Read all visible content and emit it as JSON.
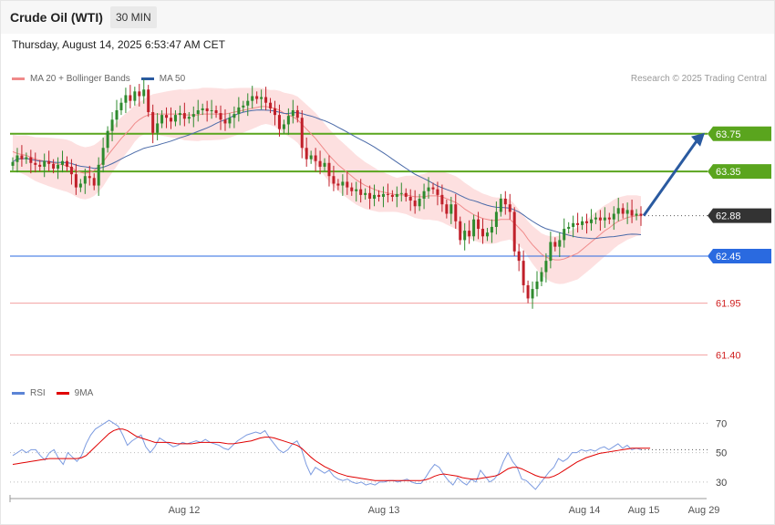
{
  "header": {
    "title": "Crude Oil (WTI)",
    "interval": "30 MIN",
    "datetime": "Thursday, August 14, 2025 6:53:47 AM CET"
  },
  "credit": "Research © 2025 Trading Central",
  "legend_main": [
    {
      "label": "MA 20 + Bollinger Bands",
      "color": "#f08a8a"
    },
    {
      "label": "MA 50",
      "color": "#2a5aa0"
    }
  ],
  "legend_rsi": [
    {
      "label": "RSI",
      "color": "#5b84d6"
    },
    {
      "label": "9MA",
      "color": "#e00000"
    }
  ],
  "colors": {
    "up": "#2e8b2e",
    "down": "#c0202a",
    "band_fill": "#fde0e0",
    "ma20": "#f08a8a",
    "ma50": "#4a6aa8",
    "resistance": "#5aa51e",
    "support_blue": "#2a6ae0",
    "support_red": "#f2a0a0",
    "current": "#333333",
    "arrow": "#2a5aa0"
  },
  "chart_data": {
    "type": "candlestick",
    "x_ticks": [
      "Aug 12",
      "Aug 13",
      "Aug 14",
      "Aug 15",
      "Aug 29"
    ],
    "price_ylim": [
      61.2,
      64.3
    ],
    "levels": [
      {
        "value": 63.75,
        "label": "63.75",
        "kind": "resistance"
      },
      {
        "value": 63.35,
        "label": "63.35",
        "kind": "resistance"
      },
      {
        "value": 62.88,
        "label": "62.88",
        "kind": "current"
      },
      {
        "value": 62.45,
        "label": "62.45",
        "kind": "support_blue"
      },
      {
        "value": 61.95,
        "label": "61.95",
        "kind": "support_red"
      },
      {
        "value": 61.4,
        "label": "61.40",
        "kind": "support_red"
      }
    ],
    "forecast_arrow": {
      "from": 62.88,
      "to": 63.75
    },
    "candles_close": [
      63.45,
      63.52,
      63.48,
      63.5,
      63.44,
      63.42,
      63.4,
      63.46,
      63.43,
      63.38,
      63.42,
      63.46,
      63.4,
      63.32,
      63.18,
      63.22,
      63.3,
      63.28,
      63.2,
      63.42,
      63.6,
      63.78,
      63.9,
      64.0,
      64.08,
      64.16,
      64.1,
      64.2,
      64.15,
      64.22,
      63.98,
      63.76,
      63.86,
      63.95,
      63.92,
      63.88,
      63.95,
      63.97,
      63.91,
      63.93,
      63.96,
      64.0,
      64.02,
      63.99,
      64.0,
      63.97,
      63.9,
      63.86,
      63.92,
      63.96,
      64.03,
      64.05,
      64.1,
      64.15,
      64.12,
      64.14,
      64.08,
      64.02,
      63.95,
      63.8,
      63.85,
      63.94,
      64.0,
      63.92,
      63.6,
      63.48,
      63.52,
      63.46,
      63.4,
      63.44,
      63.3,
      63.22,
      63.2,
      63.24,
      63.18,
      63.14,
      63.16,
      63.1,
      63.12,
      63.06,
      63.1,
      63.08,
      63.11,
      63.1,
      63.08,
      63.11,
      63.12,
      63.08,
      63.04,
      62.98,
      63.06,
      63.14,
      63.18,
      63.16,
      63.1,
      63.0,
      62.9,
      63.0,
      62.82,
      62.62,
      62.72,
      62.66,
      62.84,
      62.74,
      62.66,
      62.7,
      62.76,
      62.92,
      63.06,
      63.0,
      62.92,
      62.5,
      62.4,
      62.14,
      62.0,
      62.1,
      62.18,
      62.28,
      62.4,
      62.6,
      62.55,
      62.62,
      62.74,
      62.76,
      62.8,
      62.78,
      62.82,
      62.8,
      62.84,
      62.86,
      62.83,
      62.86,
      62.84,
      62.9,
      62.96,
      62.9,
      62.94,
      62.88,
      62.9,
      62.88
    ],
    "ma20": [
      63.56,
      63.54,
      63.53,
      63.52,
      63.5,
      63.48,
      63.47,
      63.46,
      63.45,
      63.44,
      63.43,
      63.42,
      63.41,
      63.39,
      63.36,
      63.34,
      63.33,
      63.34,
      63.36,
      63.4,
      63.45,
      63.52,
      63.58,
      63.64,
      63.7,
      63.75,
      63.8,
      63.86,
      63.9,
      63.93,
      63.95,
      63.96,
      63.96,
      63.96,
      63.96,
      63.96,
      63.96,
      63.96,
      63.95,
      63.95,
      63.95,
      63.95,
      63.96,
      63.96,
      63.96,
      63.96,
      63.96,
      63.96,
      63.97,
      63.98,
      63.99,
      64.0,
      64.01,
      64.02,
      64.03,
      64.04,
      64.04,
      64.03,
      64.02,
      64.0,
      63.97,
      63.95,
      63.93,
      63.9,
      63.85,
      63.8,
      63.75,
      63.7,
      63.64,
      63.58,
      63.52,
      63.47,
      63.42,
      63.38,
      63.34,
      63.3,
      63.26,
      63.23,
      63.2,
      63.18,
      63.16,
      63.14,
      63.13,
      63.12,
      63.11,
      63.1,
      63.1,
      63.1,
      63.09,
      63.08,
      63.08,
      63.08,
      63.09,
      63.09,
      63.09,
      63.08,
      63.06,
      63.04,
      63.02,
      62.99,
      62.95,
      62.92,
      62.89,
      62.87,
      62.85,
      62.84,
      62.83,
      62.83,
      62.84,
      62.84,
      62.84,
      62.8,
      62.75,
      62.7,
      62.63,
      62.57,
      62.52,
      62.47,
      62.44,
      62.42,
      62.41,
      62.41,
      62.42,
      62.44,
      62.46,
      62.48,
      62.52,
      62.56,
      62.6,
      62.64,
      62.68,
      62.72,
      62.75,
      62.79,
      62.82,
      62.84,
      62.86,
      62.87,
      62.88,
      62.88
    ],
    "rsi_ylim": [
      20,
      82
    ],
    "rsi_levels": [
      70,
      50,
      30
    ],
    "rsi": [
      48,
      50,
      52,
      50,
      52,
      52,
      48,
      45,
      50,
      52,
      46,
      42,
      50,
      47,
      44,
      48,
      56,
      62,
      66,
      68,
      70,
      72,
      70,
      68,
      62,
      55,
      58,
      60,
      62,
      54,
      50,
      54,
      60,
      58,
      56,
      54,
      55,
      57,
      56,
      57,
      58,
      57,
      59,
      57,
      56,
      55,
      53,
      52,
      55,
      58,
      60,
      62,
      63,
      64,
      63,
      65,
      60,
      56,
      52,
      50,
      52,
      56,
      58,
      52,
      42,
      35,
      40,
      38,
      36,
      38,
      34,
      32,
      31,
      32,
      30,
      29,
      30,
      28,
      29,
      28,
      30,
      30,
      31,
      31,
      30,
      31,
      32,
      30,
      29,
      29,
      33,
      38,
      42,
      40,
      35,
      31,
      28,
      33,
      30,
      28,
      32,
      30,
      38,
      34,
      30,
      32,
      36,
      44,
      50,
      44,
      40,
      32,
      31,
      28,
      25,
      29,
      33,
      37,
      40,
      46,
      44,
      46,
      50,
      50,
      52,
      51,
      52,
      51,
      53,
      54,
      52,
      54,
      56,
      53,
      55,
      52,
      53,
      52
    ],
    "rsi_ma": [
      42,
      42.5,
      43,
      43.5,
      44,
      44.5,
      45,
      45.5,
      46,
      46,
      46,
      46,
      46,
      46,
      46,
      46.5,
      48,
      51,
      54,
      57,
      60,
      63,
      65,
      66,
      66,
      65,
      63,
      61,
      60,
      59,
      58,
      57,
      57,
      57,
      57,
      56.5,
      56,
      56,
      56,
      56,
      56.5,
      57,
      57,
      57,
      57,
      57,
      56.5,
      56,
      56,
      56.5,
      57,
      57.5,
      58,
      59,
      60,
      60.5,
      60.5,
      60,
      59,
      58,
      57,
      56,
      55,
      53,
      50,
      47,
      44.5,
      42.5,
      40.5,
      39,
      37.5,
      36,
      35,
      34,
      33.5,
      33,
      32.5,
      32,
      31.5,
      31,
      31,
      31,
      31,
      31,
      31,
      31,
      31,
      31,
      31,
      31,
      31.5,
      32.5,
      34,
      35,
      35.5,
      35,
      34.5,
      34,
      33,
      32.5,
      32,
      32,
      32.5,
      33,
      33.5,
      34,
      35,
      37,
      39,
      40,
      40,
      39,
      37.5,
      36,
      34.5,
      33.5,
      33,
      33,
      34,
      35.5,
      37.5,
      39.5,
      41.5,
      43.5,
      45,
      46.5,
      47.5,
      48.5,
      49.5,
      50,
      50.5,
      51,
      51.5,
      52,
      52.5,
      53,
      53,
      53,
      53,
      53
    ]
  }
}
